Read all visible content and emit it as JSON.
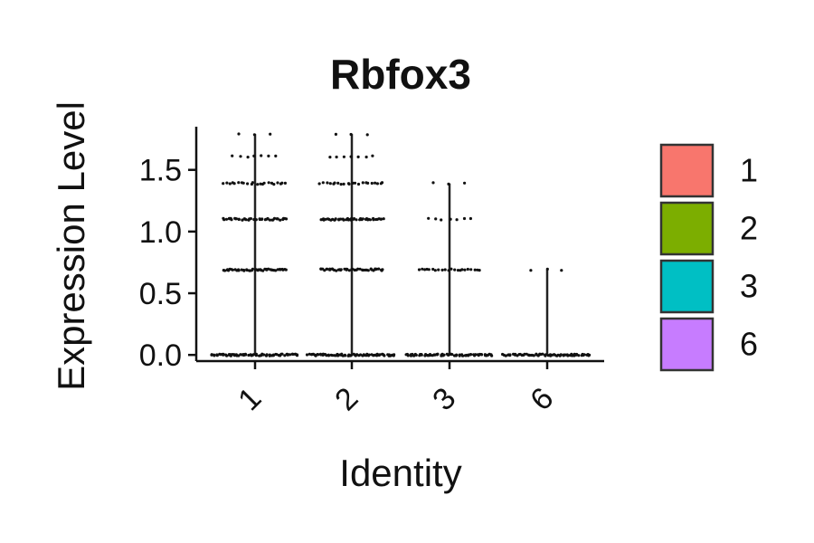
{
  "chart_data": {
    "type": "violin",
    "title": "Rbfox3",
    "xlabel": "Identity",
    "ylabel": "Expression Level",
    "categories": [
      "1",
      "2",
      "3",
      "6"
    ],
    "ylim": [
      -0.05,
      1.85
    ],
    "yticks": [
      0.0,
      0.5,
      1.0,
      1.5
    ],
    "ytick_labels": [
      "0.0",
      "0.5",
      "1.0",
      "1.5"
    ],
    "series": [
      {
        "category": "1",
        "color": "#F8766D",
        "max": 1.79,
        "levels": [
          {
            "y": 0.0,
            "density": "very high"
          },
          {
            "y": 0.69,
            "density": "high"
          },
          {
            "y": 1.1,
            "density": "high"
          },
          {
            "y": 1.39,
            "density": "medium"
          },
          {
            "y": 1.61,
            "density": "low"
          },
          {
            "y": 1.79,
            "density": "very low"
          }
        ]
      },
      {
        "category": "2",
        "color": "#7CAE00",
        "max": 1.79,
        "levels": [
          {
            "y": 0.0,
            "density": "very high"
          },
          {
            "y": 0.69,
            "density": "high"
          },
          {
            "y": 1.1,
            "density": "high"
          },
          {
            "y": 1.39,
            "density": "medium"
          },
          {
            "y": 1.61,
            "density": "low"
          },
          {
            "y": 1.79,
            "density": "very low"
          }
        ]
      },
      {
        "category": "3",
        "color": "#00BFC4",
        "max": 1.39,
        "levels": [
          {
            "y": 0.0,
            "density": "very high"
          },
          {
            "y": 0.69,
            "density": "medium"
          },
          {
            "y": 1.1,
            "density": "low"
          },
          {
            "y": 1.39,
            "density": "very low"
          }
        ]
      },
      {
        "category": "6",
        "color": "#C77CFF",
        "max": 0.69,
        "levels": [
          {
            "y": 0.0,
            "density": "very high"
          },
          {
            "y": 0.69,
            "density": "very low"
          }
        ]
      }
    ],
    "legend": {
      "position": "right",
      "entries": [
        {
          "label": "1",
          "color": "#F8766D"
        },
        {
          "label": "2",
          "color": "#7CAE00"
        },
        {
          "label": "3",
          "color": "#00BFC4"
        },
        {
          "label": "6",
          "color": "#C77CFF"
        }
      ]
    },
    "grid": false,
    "x_tick_rotation": 45
  }
}
